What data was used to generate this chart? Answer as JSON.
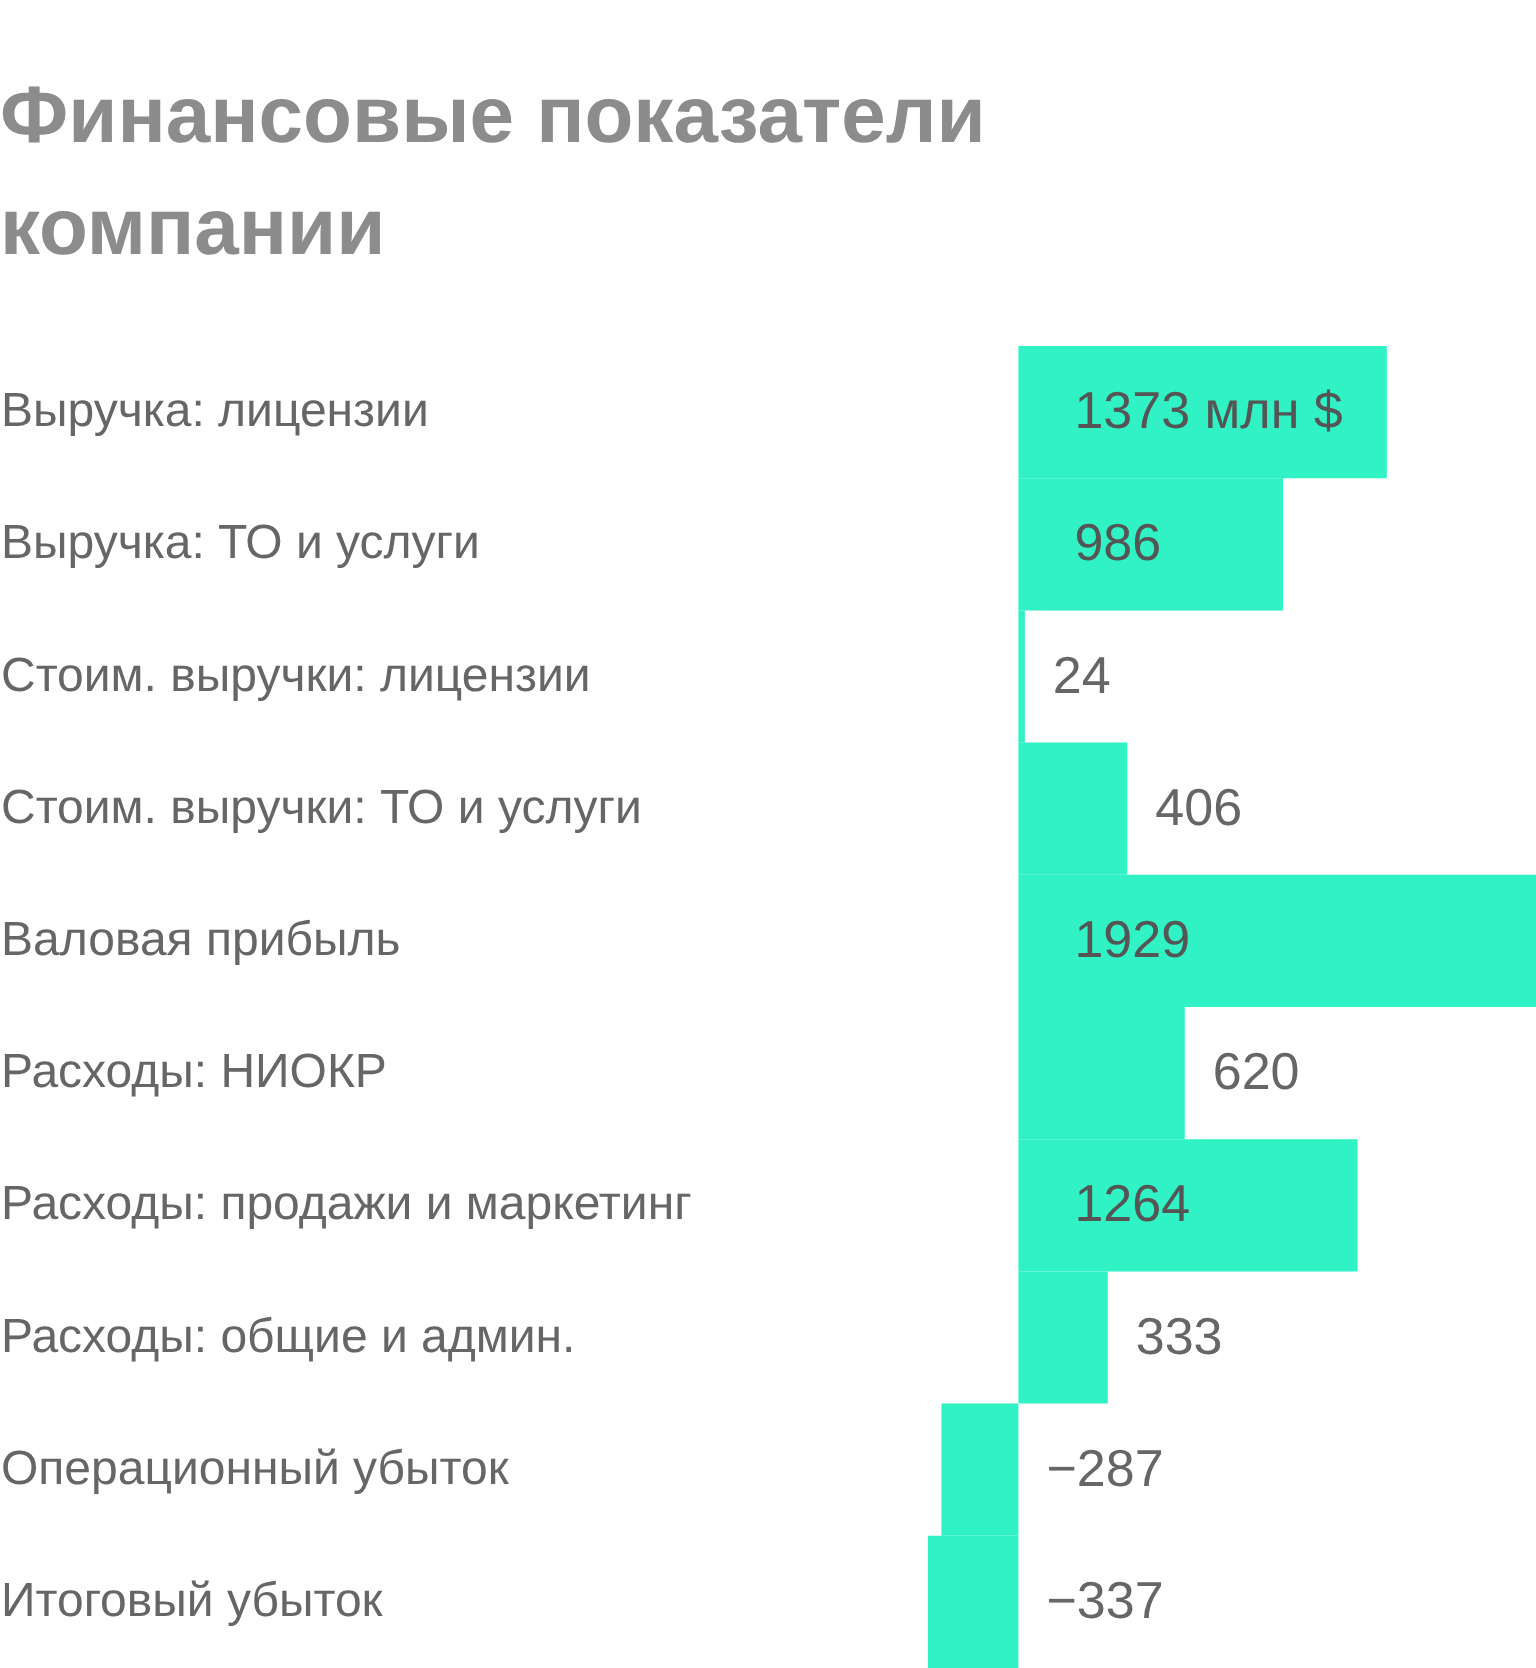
{
  "chart_data": {
    "type": "bar",
    "orientation": "horizontal",
    "title": "Финансовые показатели компании",
    "categories": [
      "Выручка: лицензии",
      "Выручка: ТО и услуги",
      "Стоим. выручки: лицензии",
      "Стоим. выручки: ТО и услуги",
      "Валовая прибыль",
      "Расходы: НИОКР",
      "Расходы: продажи и маркетинг",
      "Расходы: общие и админ.",
      "Операционный убыток",
      "Итоговый убыток"
    ],
    "values": [
      1373,
      986,
      24,
      406,
      1929,
      620,
      1264,
      333,
      -287,
      -337
    ],
    "value_labels": [
      "1373 млн $",
      "986",
      "24",
      "406",
      "1929",
      "620",
      "1264",
      "333",
      "−287",
      "−337"
    ],
    "color": "#30f2c4",
    "xlim": [
      -337,
      1929
    ],
    "tick_labels": "y",
    "grid": false
  }
}
